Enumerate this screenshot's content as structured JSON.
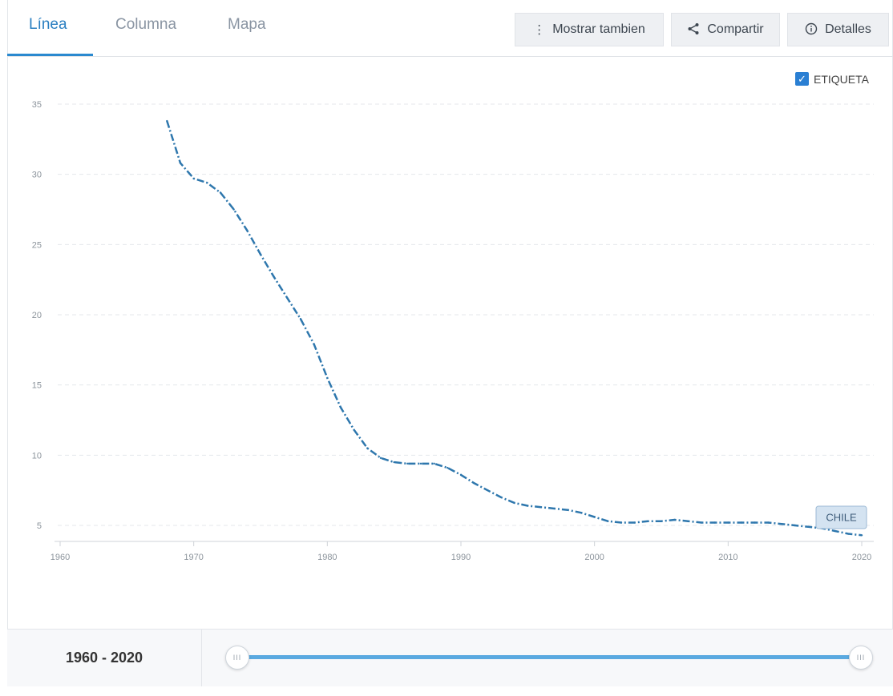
{
  "tabs": [
    {
      "label": "Línea",
      "active": true
    },
    {
      "label": "Columna",
      "active": false
    },
    {
      "label": "Mapa",
      "active": false
    }
  ],
  "toolbar": {
    "show_also_label": "Mostrar tambien",
    "share_label": "Compartir",
    "details_label": "Detalles",
    "show_also_icon": "vertical-dots-icon",
    "share_icon": "share-icon",
    "details_icon": "info-icon"
  },
  "legend": {
    "label": "ETIQUETA",
    "checked": true
  },
  "range": {
    "label": "1960 - 2020",
    "start": 1960,
    "end": 2020
  },
  "colors": {
    "accent": "#2a7fc1",
    "line": "#2e77ad",
    "track": "#5aa9e0"
  },
  "chart_data": {
    "type": "line",
    "title": "",
    "xlabel": "",
    "ylabel": "",
    "xlim": [
      1960,
      2020
    ],
    "ylim": [
      4,
      35
    ],
    "grid": true,
    "xticks": [
      1960,
      1970,
      1980,
      1990,
      2000,
      2010,
      2020
    ],
    "yticks": [
      5,
      10,
      15,
      20,
      25,
      30,
      35
    ],
    "series": [
      {
        "name": "CHILE",
        "x": [
          1968,
          1969,
          1970,
          1971,
          1972,
          1973,
          1974,
          1975,
          1976,
          1977,
          1978,
          1979,
          1980,
          1981,
          1982,
          1983,
          1984,
          1985,
          1986,
          1987,
          1988,
          1989,
          1990,
          1991,
          1992,
          1993,
          1994,
          1995,
          1996,
          1997,
          1998,
          1999,
          2000,
          2001,
          2002,
          2003,
          2004,
          2005,
          2006,
          2007,
          2008,
          2009,
          2010,
          2011,
          2012,
          2013,
          2014,
          2015,
          2016,
          2017,
          2018,
          2019,
          2020
        ],
        "y": [
          33.8,
          30.8,
          29.7,
          29.4,
          28.7,
          27.5,
          26.0,
          24.3,
          22.7,
          21.2,
          19.7,
          17.9,
          15.5,
          13.4,
          11.8,
          10.5,
          9.8,
          9.5,
          9.4,
          9.4,
          9.4,
          9.1,
          8.6,
          8.0,
          7.5,
          7.0,
          6.6,
          6.4,
          6.3,
          6.2,
          6.1,
          5.9,
          5.6,
          5.3,
          5.2,
          5.2,
          5.3,
          5.3,
          5.4,
          5.3,
          5.2,
          5.2,
          5.2,
          5.2,
          5.2,
          5.2,
          5.1,
          5.0,
          4.9,
          4.8,
          4.6,
          4.4,
          4.3
        ]
      }
    ]
  }
}
